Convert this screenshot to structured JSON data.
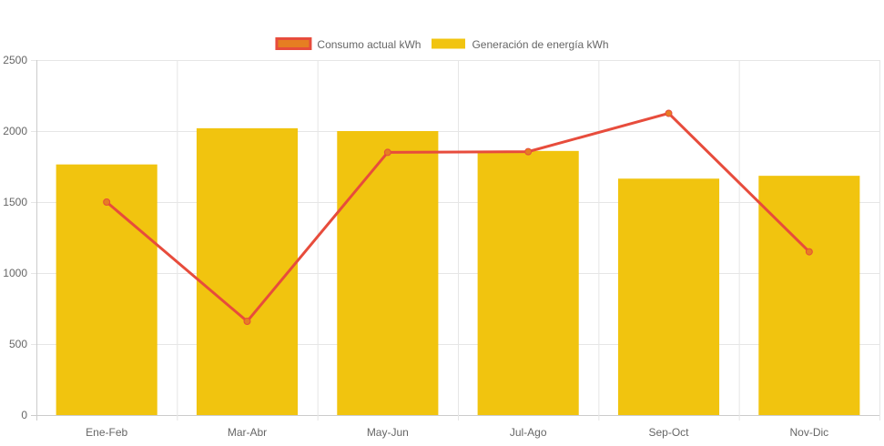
{
  "chart_data": {
    "type": "bar",
    "categories": [
      "Ene-Feb",
      "Mar-Abr",
      "May-Jun",
      "Jul-Ago",
      "Sep-Oct",
      "Nov-Dic"
    ],
    "series": [
      {
        "name": "Consumo actual kWh",
        "type": "line",
        "values": [
          1500,
          660,
          1850,
          1855,
          2125,
          1150
        ],
        "color": "#e74c3c",
        "point_color": "#e67e22"
      },
      {
        "name": "Generación de energía kWh",
        "type": "bar",
        "values": [
          1765,
          2020,
          2000,
          1860,
          1665,
          1685
        ],
        "color": "#f1c40f"
      }
    ],
    "legend_position": "top",
    "ylim": [
      0,
      2500
    ],
    "yticks": [
      0,
      500,
      1000,
      1500,
      2000,
      2500
    ],
    "grid": true,
    "title": "",
    "xlabel": "",
    "ylabel": ""
  },
  "colors": {
    "grid": "#e6e6e6",
    "axis": "#cccccc",
    "tick_text": "#666666"
  }
}
